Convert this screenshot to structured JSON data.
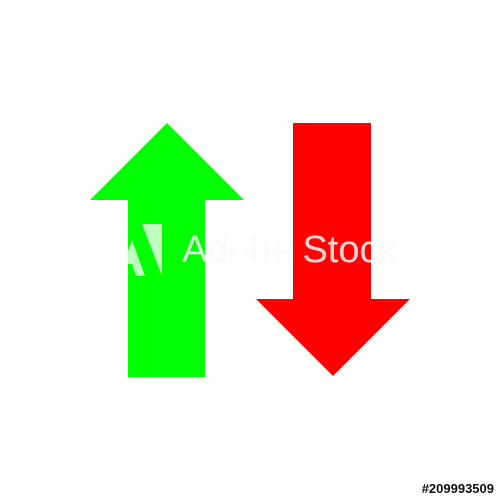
{
  "image": {
    "background_color": "#ffffff"
  },
  "arrows": {
    "up": {
      "icon": "arrow-up-icon",
      "color": "#00ff00"
    },
    "down": {
      "icon": "arrow-down-icon",
      "color": "#ff0000"
    }
  },
  "watermark": {
    "text": "Adobe Stock",
    "logo_icon": "adobe-logo-icon"
  },
  "stock_id": "#209993509"
}
